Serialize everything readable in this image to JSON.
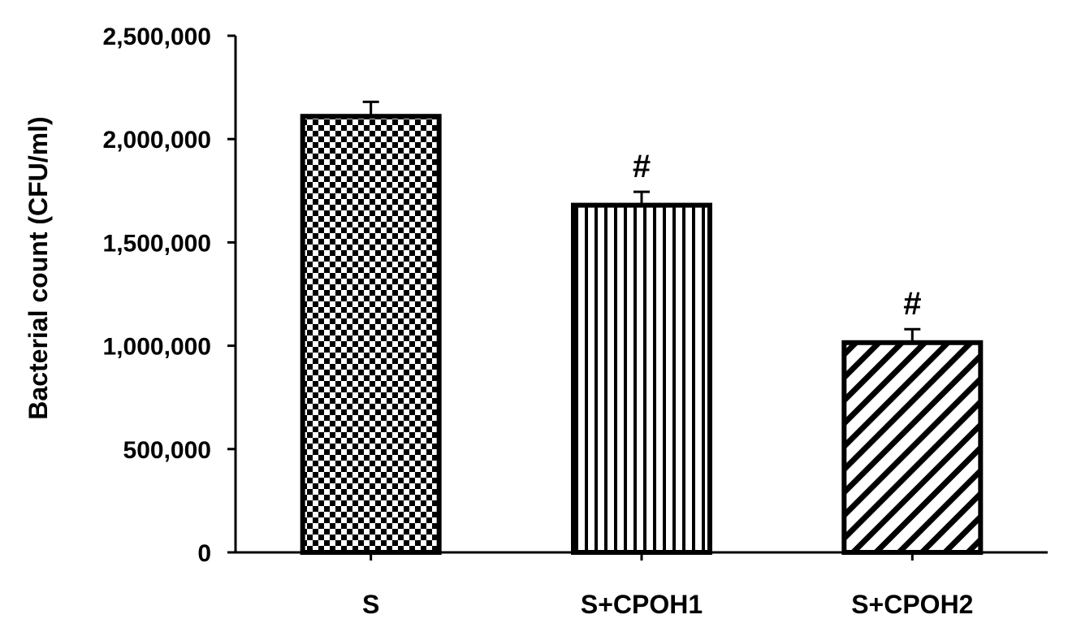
{
  "chart_data": {
    "type": "bar",
    "title": "",
    "xlabel": "",
    "ylabel": "Bacterial count (CFU/ml)",
    "ylim": [
      0,
      2500000
    ],
    "yticks": [
      0,
      500000,
      1000000,
      1500000,
      2000000,
      2500000
    ],
    "ytick_labels": [
      "0",
      "500,000",
      "1,000,000",
      "1,500,000",
      "2,000,000",
      "2,500,000"
    ],
    "categories": [
      "S",
      "S+CPOH1",
      "S+CPOH2"
    ],
    "values": [
      2110000,
      1680000,
      1015000
    ],
    "errors": [
      70000,
      65000,
      65000
    ],
    "annotations": [
      "",
      "#",
      "#"
    ],
    "patterns": [
      "checkerboard",
      "vertical-lines",
      "diagonal-lines"
    ],
    "grid": false,
    "legend": "none",
    "colors": {
      "bar_stroke": "#000000",
      "fill": "#000000",
      "background": "#ffffff"
    }
  }
}
